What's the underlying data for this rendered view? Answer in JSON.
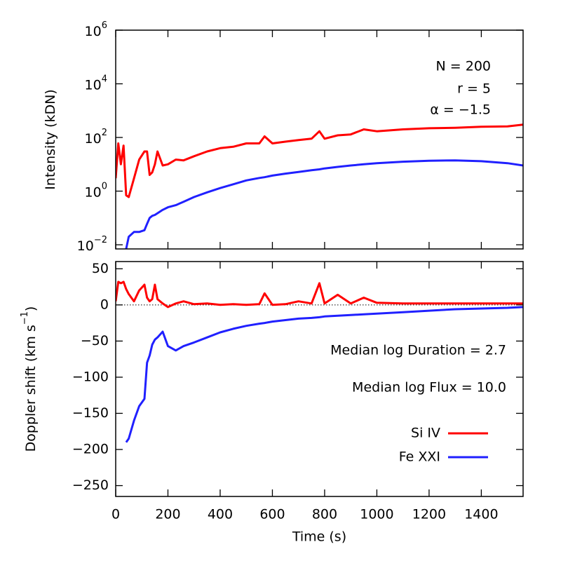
{
  "chart_data": [
    {
      "type": "line",
      "y_label": "Intensity (kDN)",
      "log_y": true,
      "annotations": [
        "N = 200",
        "r = 5",
        "α = −1.5"
      ],
      "x": [
        0,
        10,
        20,
        30,
        40,
        50,
        70,
        90,
        110,
        120,
        130,
        140,
        150,
        160,
        180,
        200,
        230,
        260,
        300,
        350,
        400,
        450,
        500,
        550,
        570,
        600,
        650,
        700,
        750,
        780,
        800,
        850,
        900,
        950,
        1000,
        1100,
        1200,
        1300,
        1400,
        1500,
        1560
      ],
      "series": [
        {
          "name": "Si IV",
          "color": "#ff0000",
          "values": [
            3,
            60,
            10,
            50,
            0.7,
            0.6,
            3,
            15,
            30,
            30,
            4,
            5,
            10,
            30,
            9,
            10,
            15,
            14,
            20,
            30,
            40,
            45,
            60,
            60,
            110,
            60,
            70,
            80,
            90,
            170,
            90,
            120,
            130,
            200,
            170,
            200,
            220,
            230,
            250,
            260,
            300
          ]
        },
        {
          "name": "Fe XXI",
          "color": "#2020ff",
          "values": [
            null,
            null,
            null,
            null,
            0.007,
            0.02,
            0.03,
            0.03,
            0.035,
            0.06,
            0.1,
            0.12,
            0.13,
            0.15,
            0.2,
            0.25,
            0.3,
            0.4,
            0.6,
            0.9,
            1.3,
            1.8,
            2.5,
            3.1,
            3.3,
            3.8,
            4.5,
            5.2,
            6,
            6.5,
            7,
            8,
            9,
            10,
            11,
            12.5,
            13.5,
            14,
            13,
            11,
            9
          ]
        }
      ],
      "xlim": [
        0,
        1560
      ],
      "xticks": [
        0,
        200,
        400,
        600,
        800,
        1000,
        1200,
        1400
      ],
      "ylim": [
        0.007,
        1000000
      ],
      "yticks": [
        {
          "value": 0.01,
          "label": "10",
          "exponent": "−2"
        },
        {
          "value": 1,
          "label": "10",
          "exponent": "0"
        },
        {
          "value": 100,
          "label": "10",
          "exponent": "2"
        },
        {
          "value": 10000,
          "label": "10",
          "exponent": "4"
        },
        {
          "value": 1000000,
          "label": "10",
          "exponent": "6"
        }
      ]
    },
    {
      "type": "line",
      "y_label": "Doppler shift (km s",
      "y_label_sup": "−1",
      "y_label_end": ")",
      "x_label": "Time (s)",
      "zero_line": true,
      "legend": "lower right",
      "annotations": [
        "Median log Duration = 2.7",
        "Median log Flux = 10.0"
      ],
      "x": [
        0,
        10,
        20,
        30,
        40,
        50,
        70,
        90,
        110,
        120,
        130,
        140,
        150,
        160,
        180,
        200,
        230,
        260,
        300,
        350,
        400,
        450,
        500,
        550,
        570,
        600,
        650,
        700,
        750,
        780,
        800,
        850,
        900,
        950,
        1000,
        1100,
        1200,
        1300,
        1400,
        1500,
        1560
      ],
      "series": [
        {
          "name": "Si IV",
          "color": "#ff0000",
          "values": [
            5,
            32,
            30,
            32,
            22,
            15,
            5,
            20,
            28,
            10,
            5,
            8,
            28,
            8,
            2,
            -3,
            2,
            5,
            1,
            2,
            0,
            1,
            0,
            1,
            16,
            0,
            1,
            5,
            2,
            30,
            2,
            14,
            2,
            10,
            3,
            2,
            2,
            2,
            2,
            2,
            2
          ]
        },
        {
          "name": "Fe XXI",
          "color": "#2020ff",
          "values": [
            null,
            null,
            null,
            null,
            -190,
            -185,
            -160,
            -140,
            -130,
            -80,
            -70,
            -55,
            -48,
            -45,
            -37,
            -57,
            -63,
            -57,
            -52,
            -45,
            -38,
            -33,
            -29,
            -26,
            -25,
            -23,
            -21,
            -19,
            -18,
            -17,
            -16,
            -15,
            -14,
            -13,
            -12,
            -10,
            -8,
            -6,
            -5,
            -4,
            -3
          ]
        }
      ],
      "xlim": [
        0,
        1560
      ],
      "xticks": [
        0,
        200,
        400,
        600,
        800,
        1000,
        1200,
        1400
      ],
      "ylim": [
        -265,
        60
      ],
      "yticks": [
        {
          "value": -250,
          "label": "−250"
        },
        {
          "value": -200,
          "label": "−200"
        },
        {
          "value": -150,
          "label": "−150"
        },
        {
          "value": -100,
          "label": "−100"
        },
        {
          "value": -50,
          "label": "−50"
        },
        0,
        50
      ]
    }
  ]
}
